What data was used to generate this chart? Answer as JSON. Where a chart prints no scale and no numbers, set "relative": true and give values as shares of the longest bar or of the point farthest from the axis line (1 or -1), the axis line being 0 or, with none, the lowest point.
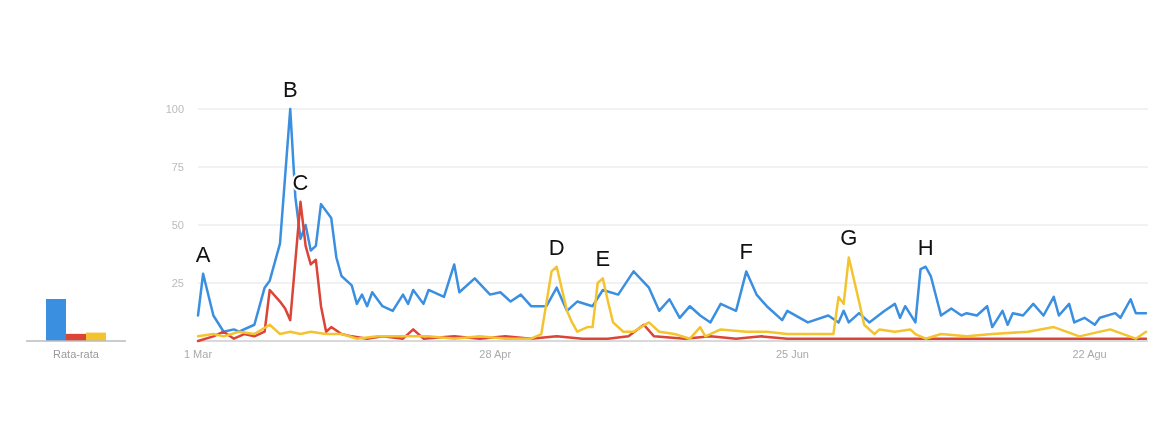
{
  "chart_data": [
    {
      "type": "bar",
      "relative": true,
      "categories": [
        "Rata-rata"
      ],
      "series": [
        {
          "color": "#3b8fe0",
          "values": [
            1
          ]
        },
        {
          "color": "#db4437",
          "values": [
            0.17
          ]
        },
        {
          "color": "#f4c430",
          "values": [
            0.2
          ]
        }
      ]
    },
    {
      "type": "line",
      "xlim": [
        "--03-01",
        "--09-02"
      ],
      "xticks": [
        {
          "value": "--03-01",
          "label": "1 Mar"
        },
        {
          "value": "--04-28",
          "label": "28 Apr"
        },
        {
          "value": "--06-25",
          "label": "25 Jun"
        },
        {
          "value": "--08-22",
          "label": "22 Agu"
        }
      ],
      "ylim": [
        0,
        100
      ],
      "yticks": [
        25,
        50,
        75,
        100
      ],
      "grid": "y",
      "annotations": [
        {
          "text": "A",
          "x": "--03-02",
          "y": 29
        },
        {
          "text": "B",
          "x": "--03-19",
          "y": 100
        },
        {
          "text": "C",
          "x": "--03-21",
          "y": 60
        },
        {
          "text": "D",
          "x": "--05-10",
          "y": 32
        },
        {
          "text": "E",
          "x": "--05-19",
          "y": 27
        },
        {
          "text": "F",
          "x": "--06-16",
          "y": 30
        },
        {
          "text": "G",
          "x": "--07-06",
          "y": 36
        },
        {
          "text": "H",
          "x": "--07-21",
          "y": 32
        }
      ],
      "series": [
        {
          "color": "#3b8fe0",
          "x": [
            "--03-01",
            "--03-02",
            "--03-04",
            "--03-06",
            "--03-08",
            "--03-09",
            "--03-12",
            "--03-14",
            "--03-15",
            "--03-17",
            "--03-19",
            "--03-20",
            "--03-21",
            "--03-22",
            "--03-23",
            "--03-24",
            "--03-25",
            "--03-27",
            "--03-28",
            "--03-29",
            "--03-31",
            "--04-01",
            "--04-02",
            "--04-03",
            "--04-04",
            "--04-06",
            "--04-08",
            "--04-10",
            "--04-11",
            "--04-12",
            "--04-14",
            "--04-15",
            "--04-18",
            "--04-20",
            "--04-21",
            "--04-24",
            "--04-27",
            "--04-29",
            "--05-01",
            "--05-03",
            "--05-05",
            "--05-08",
            "--05-10",
            "--05-12",
            "--05-14",
            "--05-17",
            "--05-19",
            "--05-22",
            "--05-25",
            "--05-28",
            "--05-30",
            "--06-01",
            "--06-03",
            "--06-05",
            "--06-07",
            "--06-09",
            "--06-11",
            "--06-14",
            "--06-16",
            "--06-18",
            "--06-20",
            "--06-23",
            "--06-24",
            "--06-28",
            "--07-02",
            "--07-04",
            "--07-05",
            "--07-06",
            "--07-08",
            "--07-10",
            "--07-13",
            "--07-15",
            "--07-16",
            "--07-17",
            "--07-19",
            "--07-20",
            "--07-21",
            "--07-22",
            "--07-24",
            "--07-26",
            "--07-28",
            "--07-29",
            "--07-31",
            "--08-02",
            "--08-03",
            "--08-05",
            "--08-06",
            "--08-07",
            "--08-09",
            "--08-11",
            "--08-13",
            "--08-15",
            "--08-16",
            "--08-18",
            "--08-19",
            "--08-21",
            "--08-23",
            "--08-24",
            "--08-27",
            "--08-28",
            "--08-30",
            "--08-31",
            "--09-02"
          ],
          "values": [
            11,
            29,
            11,
            4,
            5,
            4,
            7,
            23,
            26,
            42,
            100,
            62,
            44,
            50,
            39,
            41,
            59,
            53,
            36,
            28,
            24,
            16,
            20,
            15,
            21,
            15,
            13,
            20,
            16,
            22,
            16,
            22,
            19,
            33,
            21,
            27,
            20,
            21,
            17,
            20,
            15,
            15,
            23,
            13,
            17,
            15,
            22,
            20,
            30,
            23,
            13,
            18,
            10,
            15,
            11,
            8,
            16,
            13,
            30,
            20,
            15,
            9,
            13,
            8,
            11,
            8,
            13,
            8,
            12,
            8,
            13,
            16,
            10,
            15,
            8,
            31,
            32,
            28,
            11,
            14,
            11,
            12,
            11,
            15,
            6,
            13,
            7,
            12,
            11,
            16,
            11,
            19,
            11,
            16,
            8,
            10,
            7,
            10,
            12,
            10,
            18,
            12,
            12
          ]
        },
        {
          "color": "#db4437",
          "x": [
            "--03-01",
            "--03-04",
            "--03-06",
            "--03-08",
            "--03-10",
            "--03-12",
            "--03-14",
            "--03-15",
            "--03-17",
            "--03-18",
            "--03-19",
            "--03-21",
            "--03-22",
            "--03-23",
            "--03-24",
            "--03-25",
            "--03-26",
            "--03-27",
            "--03-29",
            "--03-31",
            "--04-03",
            "--04-06",
            "--04-10",
            "--04-12",
            "--04-14",
            "--04-20",
            "--04-25",
            "--04-30",
            "--05-05",
            "--05-10",
            "--05-15",
            "--05-20",
            "--05-24",
            "--05-27",
            "--05-29",
            "--06-04",
            "--06-09",
            "--06-14",
            "--06-19",
            "--06-24",
            "--06-29",
            "--07-09",
            "--07-19",
            "--07-29",
            "--08-08",
            "--08-18",
            "--08-28",
            "--09-02"
          ],
          "values": [
            0,
            2,
            4,
            1,
            3,
            2,
            4,
            22,
            17,
            14,
            9,
            60,
            41,
            33,
            35,
            15,
            4,
            6,
            3,
            2,
            1,
            2,
            1,
            5,
            1,
            2,
            1,
            2,
            1,
            2,
            1,
            1,
            2,
            7,
            2,
            1,
            2,
            1,
            2,
            1,
            1,
            1,
            1,
            1,
            1,
            1,
            1,
            1
          ]
        },
        {
          "color": "#f4c430",
          "x": [
            "--03-01",
            "--03-04",
            "--03-06",
            "--03-09",
            "--03-12",
            "--03-15",
            "--03-17",
            "--03-19",
            "--03-21",
            "--03-23",
            "--03-26",
            "--03-29",
            "--04-01",
            "--04-05",
            "--04-10",
            "--04-15",
            "--04-20",
            "--04-25",
            "--04-30",
            "--05-05",
            "--05-07",
            "--05-09",
            "--05-10",
            "--05-12",
            "--05-13",
            "--05-14",
            "--05-16",
            "--05-17",
            "--05-18",
            "--05-19",
            "--05-20",
            "--05-21",
            "--05-23",
            "--05-25",
            "--05-28",
            "--05-30",
            "--06-02",
            "--06-05",
            "--06-07",
            "--06-08",
            "--06-11",
            "--06-16",
            "--06-20",
            "--06-24",
            "--06-29",
            "--07-03",
            "--07-04",
            "--07-05",
            "--07-06",
            "--07-08",
            "--07-09",
            "--07-11",
            "--07-12",
            "--07-15",
            "--07-18",
            "--07-19",
            "--07-21",
            "--07-24",
            "--07-29",
            "--08-03",
            "--08-10",
            "--08-15",
            "--08-20",
            "--08-26",
            "--08-31",
            "--09-02"
          ],
          "values": [
            2,
            3,
            2,
            4,
            3,
            7,
            3,
            4,
            3,
            4,
            3,
            3,
            1,
            2,
            2,
            2,
            1,
            2,
            1,
            1,
            3,
            30,
            32,
            13,
            8,
            4,
            6,
            6,
            25,
            27,
            17,
            8,
            4,
            4,
            8,
            4,
            3,
            1,
            6,
            2,
            5,
            4,
            4,
            3,
            3,
            3,
            19,
            16,
            36,
            17,
            7,
            3,
            5,
            4,
            5,
            3,
            1,
            3,
            2,
            3,
            4,
            6,
            2,
            5,
            1,
            4
          ]
        }
      ]
    }
  ]
}
